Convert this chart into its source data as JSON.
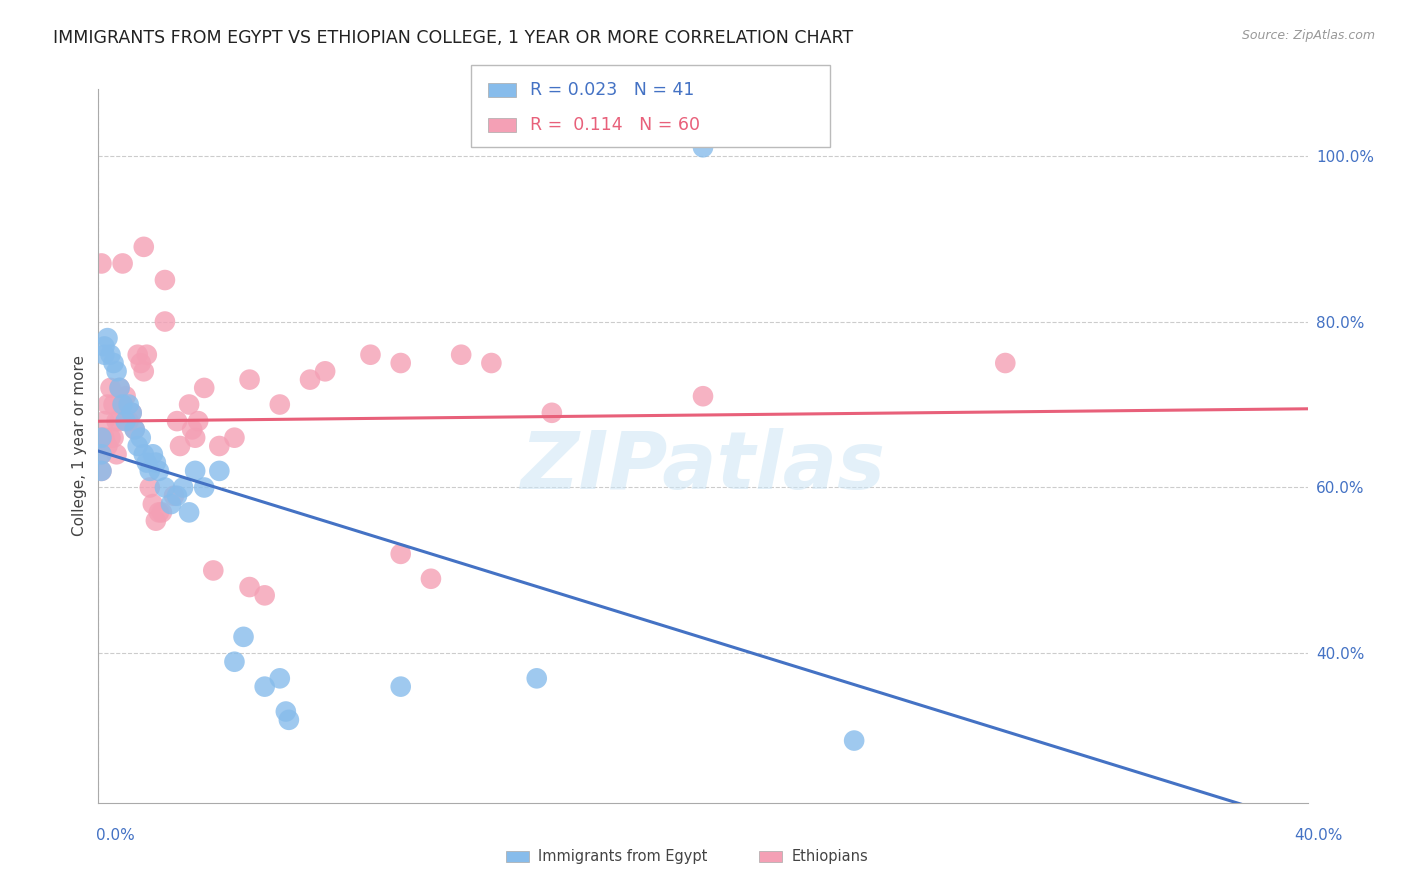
{
  "title": "IMMIGRANTS FROM EGYPT VS ETHIOPIAN COLLEGE, 1 YEAR OR MORE CORRELATION CHART",
  "source": "Source: ZipAtlas.com",
  "ylabel": "College, 1 year or more",
  "ytick_values": [
    0.4,
    0.6,
    0.8,
    1.0
  ],
  "xlim": [
    0.0,
    0.4
  ],
  "ylim": [
    0.22,
    1.08
  ],
  "watermark": "ZIPatlas",
  "egypt_color": "#87BCEB",
  "ethiopia_color": "#F4A0B5",
  "egypt_line_color": "#4472C4",
  "ethiopia_line_color": "#E8607A",
  "egypt_R": "0.023",
  "egypt_N": "41",
  "ethiopia_R": "0.114",
  "ethiopia_N": "60",
  "egypt_scatter": [
    [
      0.001,
      0.66
    ],
    [
      0.001,
      0.64
    ],
    [
      0.001,
      0.62
    ],
    [
      0.002,
      0.77
    ],
    [
      0.002,
      0.76
    ],
    [
      0.003,
      0.78
    ],
    [
      0.004,
      0.76
    ],
    [
      0.005,
      0.75
    ],
    [
      0.006,
      0.74
    ],
    [
      0.007,
      0.72
    ],
    [
      0.008,
      0.7
    ],
    [
      0.009,
      0.68
    ],
    [
      0.01,
      0.7
    ],
    [
      0.011,
      0.69
    ],
    [
      0.012,
      0.67
    ],
    [
      0.013,
      0.65
    ],
    [
      0.014,
      0.66
    ],
    [
      0.015,
      0.64
    ],
    [
      0.016,
      0.63
    ],
    [
      0.017,
      0.62
    ],
    [
      0.018,
      0.64
    ],
    [
      0.019,
      0.63
    ],
    [
      0.02,
      0.62
    ],
    [
      0.022,
      0.6
    ],
    [
      0.024,
      0.58
    ],
    [
      0.026,
      0.59
    ],
    [
      0.028,
      0.6
    ],
    [
      0.03,
      0.57
    ],
    [
      0.032,
      0.62
    ],
    [
      0.035,
      0.6
    ],
    [
      0.04,
      0.62
    ],
    [
      0.045,
      0.39
    ],
    [
      0.048,
      0.42
    ],
    [
      0.055,
      0.36
    ],
    [
      0.06,
      0.37
    ],
    [
      0.062,
      0.33
    ],
    [
      0.063,
      0.32
    ],
    [
      0.1,
      0.36
    ],
    [
      0.145,
      0.37
    ],
    [
      0.2,
      1.01
    ],
    [
      0.25,
      0.295
    ]
  ],
  "ethiopia_scatter": [
    [
      0.001,
      0.62
    ],
    [
      0.001,
      0.64
    ],
    [
      0.001,
      0.66
    ],
    [
      0.001,
      0.87
    ],
    [
      0.002,
      0.68
    ],
    [
      0.002,
      0.66
    ],
    [
      0.003,
      0.7
    ],
    [
      0.003,
      0.65
    ],
    [
      0.004,
      0.72
    ],
    [
      0.004,
      0.66
    ],
    [
      0.005,
      0.7
    ],
    [
      0.005,
      0.66
    ],
    [
      0.006,
      0.68
    ],
    [
      0.006,
      0.64
    ],
    [
      0.007,
      0.72
    ],
    [
      0.007,
      0.68
    ],
    [
      0.008,
      0.7
    ],
    [
      0.008,
      0.87
    ],
    [
      0.009,
      0.71
    ],
    [
      0.01,
      0.68
    ],
    [
      0.011,
      0.69
    ],
    [
      0.012,
      0.67
    ],
    [
      0.013,
      0.76
    ],
    [
      0.014,
      0.75
    ],
    [
      0.015,
      0.74
    ],
    [
      0.015,
      0.89
    ],
    [
      0.016,
      0.76
    ],
    [
      0.017,
      0.6
    ],
    [
      0.018,
      0.58
    ],
    [
      0.019,
      0.56
    ],
    [
      0.02,
      0.57
    ],
    [
      0.021,
      0.57
    ],
    [
      0.022,
      0.8
    ],
    [
      0.022,
      0.85
    ],
    [
      0.025,
      0.59
    ],
    [
      0.026,
      0.68
    ],
    [
      0.027,
      0.65
    ],
    [
      0.03,
      0.7
    ],
    [
      0.031,
      0.67
    ],
    [
      0.032,
      0.66
    ],
    [
      0.033,
      0.68
    ],
    [
      0.035,
      0.72
    ],
    [
      0.038,
      0.5
    ],
    [
      0.04,
      0.65
    ],
    [
      0.045,
      0.66
    ],
    [
      0.05,
      0.73
    ],
    [
      0.05,
      0.48
    ],
    [
      0.055,
      0.47
    ],
    [
      0.06,
      0.7
    ],
    [
      0.07,
      0.73
    ],
    [
      0.075,
      0.74
    ],
    [
      0.09,
      0.76
    ],
    [
      0.1,
      0.52
    ],
    [
      0.1,
      0.75
    ],
    [
      0.11,
      0.49
    ],
    [
      0.12,
      0.76
    ],
    [
      0.13,
      0.75
    ],
    [
      0.15,
      0.69
    ],
    [
      0.2,
      0.71
    ],
    [
      0.3,
      0.75
    ]
  ],
  "background_color": "#ffffff",
  "grid_color": "#cccccc"
}
